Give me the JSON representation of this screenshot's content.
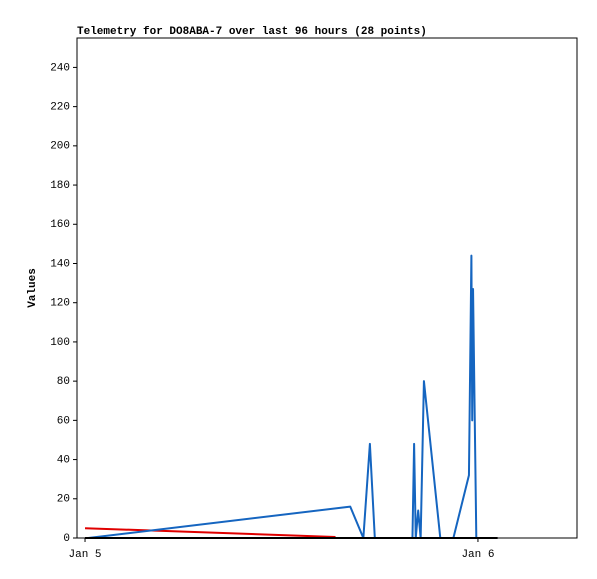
{
  "chart_data": {
    "type": "line",
    "title": "Telemetry for DO8ABA-7 over last 96 hours (28 points)",
    "y_label": "Values",
    "xlim": [
      -0.49,
      30.05
    ],
    "xticks": [
      {
        "value": 0,
        "label": "Jan 5"
      },
      {
        "value": 24,
        "label": "Jan 6"
      }
    ],
    "ylim": [
      0,
      255
    ],
    "yticks": [
      0,
      20,
      40,
      60,
      80,
      100,
      120,
      140,
      160,
      180,
      200,
      220,
      240
    ],
    "grid": false,
    "series": [
      {
        "color": "#e00000",
        "x": [
          0,
          15.3
        ],
        "values": [
          5,
          0.5
        ]
      },
      {
        "color": "#1565c0",
        "x": [
          0.2,
          16.2,
          17.0,
          17.4,
          17.7,
          20.0,
          20.1,
          20.2,
          20.35,
          20.5,
          20.7,
          21.7,
          22.5,
          23.45,
          23.6,
          23.65,
          23.7,
          23.9
        ],
        "values": [
          0,
          16,
          0,
          48,
          0,
          0,
          48,
          0,
          14,
          0,
          80,
          0,
          0,
          32,
          144,
          60,
          127,
          0
        ]
      },
      {
        "color": "#000000",
        "x": [
          0,
          25.2
        ],
        "values": [
          0,
          0
        ]
      }
    ]
  }
}
